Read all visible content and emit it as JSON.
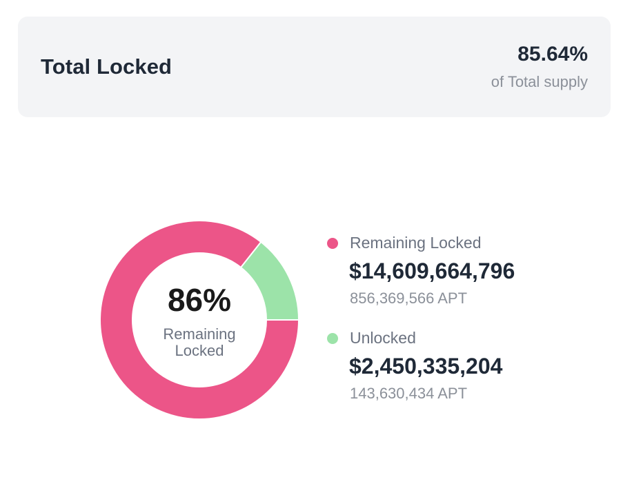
{
  "header": {
    "title": "Total Locked",
    "stat_value": "85.64%",
    "stat_caption": "of Total supply"
  },
  "donut_center": {
    "percent": "86%",
    "label": "Remaining Locked"
  },
  "legend": {
    "items": [
      {
        "label": "Remaining Locked",
        "value": "$14,609,664,796",
        "amount": "856,369,566 APT",
        "color": "#ec5588"
      },
      {
        "label": "Unlocked",
        "value": "$2,450,335,204",
        "amount": "143,630,434 APT",
        "color": "#9ce3a9"
      }
    ]
  },
  "chart_data": {
    "type": "pie",
    "style": "donut",
    "categories": [
      "Remaining Locked",
      "Unlocked"
    ],
    "values": [
      856369566,
      143630434
    ],
    "percentages": [
      85.64,
      14.36
    ],
    "colors": [
      "#ec5588",
      "#9ce3a9"
    ],
    "center_text": "86%",
    "center_label": "Remaining Locked",
    "legend_position": "right"
  }
}
